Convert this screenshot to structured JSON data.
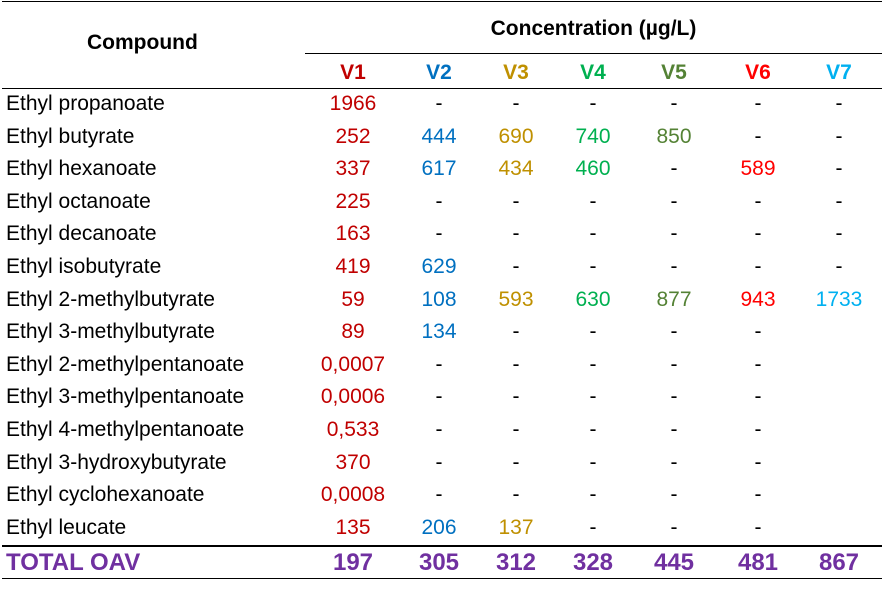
{
  "header": {
    "compound_label": "Compound",
    "concentration_label": "Concentration (µg/L)",
    "columns": [
      {
        "label": "V1",
        "color": "#c00000"
      },
      {
        "label": "V2",
        "color": "#0070c0"
      },
      {
        "label": "V3",
        "color": "#bf9000"
      },
      {
        "label": "V4",
        "color": "#00b050"
      },
      {
        "label": "V5",
        "color": "#548235"
      },
      {
        "label": "V6",
        "color": "#ff0000"
      },
      {
        "label": "V7",
        "color": "#00b0f0"
      }
    ]
  },
  "rows": [
    {
      "name": "Ethyl propanoate",
      "values": [
        "1966",
        "-",
        "-",
        "-",
        "-",
        "-",
        "-"
      ]
    },
    {
      "name": "Ethyl butyrate",
      "values": [
        "252",
        "444",
        "690",
        "740",
        "850",
        "-",
        "-"
      ]
    },
    {
      "name": "Ethyl hexanoate",
      "values": [
        "337",
        "617",
        "434",
        "460",
        "-",
        "589",
        "-"
      ]
    },
    {
      "name": "Ethyl octanoate",
      "values": [
        "225",
        "-",
        "-",
        "-",
        "-",
        "-",
        "-"
      ]
    },
    {
      "name": "Ethyl decanoate",
      "values": [
        "163",
        "-",
        "-",
        "-",
        "-",
        "-",
        "-"
      ]
    },
    {
      "name": "Ethyl isobutyrate",
      "values": [
        "419",
        "629",
        "-",
        "-",
        "-",
        "-",
        "-"
      ]
    },
    {
      "name": "Ethyl 2-methylbutyrate",
      "values": [
        "59",
        "108",
        "593",
        "630",
        "877",
        "943",
        "1733"
      ]
    },
    {
      "name": "Ethyl 3-methylbutyrate",
      "values": [
        "89",
        "134",
        "-",
        "-",
        "-",
        "-",
        ""
      ]
    },
    {
      "name": "Ethyl 2-methylpentanoate",
      "values": [
        "0,0007",
        "-",
        "-",
        "-",
        "-",
        "-",
        ""
      ]
    },
    {
      "name": "Ethyl 3-methylpentanoate",
      "values": [
        "0,0006",
        "-",
        "-",
        "-",
        "-",
        "-",
        ""
      ]
    },
    {
      "name": "Ethyl 4-methylpentanoate",
      "values": [
        "0,533",
        "-",
        "-",
        "-",
        "-",
        "-",
        ""
      ]
    },
    {
      "name": "Ethyl 3-hydroxybutyrate",
      "values": [
        "370",
        "-",
        "-",
        "-",
        "-",
        "-",
        ""
      ]
    },
    {
      "name": "Ethyl cyclohexanoate",
      "values": [
        "0,0008",
        "-",
        "-",
        "-",
        "-",
        "-",
        ""
      ]
    },
    {
      "name": "Ethyl leucate",
      "values": [
        "135",
        "206",
        "137",
        "-",
        "-",
        "-",
        ""
      ]
    }
  ],
  "total": {
    "label": "TOTAL OAV",
    "values": [
      "197",
      "305",
      "312",
      "328",
      "445",
      "481",
      "867"
    ],
    "color": "#7030a0"
  }
}
